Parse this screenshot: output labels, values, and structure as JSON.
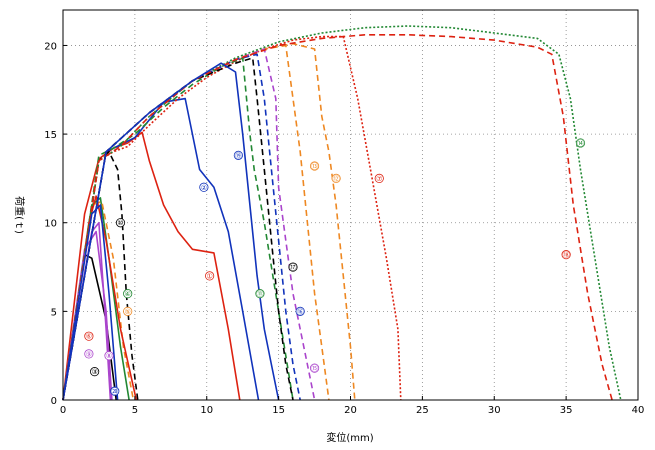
{
  "chart_data": {
    "type": "line",
    "title": "",
    "xlabel": "変位(mm)",
    "ylabel": "荷重(ｔ)",
    "xlim": [
      0,
      40
    ],
    "ylim": [
      0,
      22
    ],
    "x_ticks": [
      0,
      5,
      10,
      15,
      20,
      25,
      30,
      35,
      40
    ],
    "y_ticks": [
      0,
      5,
      10,
      15,
      20
    ],
    "grid": true,
    "grid_style": "dotted",
    "series": [
      {
        "label": "①",
        "color": "#dd2211",
        "dash": "",
        "label_at": [
          10.2,
          7.0
        ],
        "x": [
          0,
          1.5,
          2.5,
          3.5,
          4.5,
          5.5,
          6.0,
          7.0,
          8.0,
          9.0,
          10.5,
          11.5,
          12.3
        ],
        "y": [
          0,
          10.5,
          13.6,
          14.2,
          14.5,
          15.1,
          13.5,
          11.0,
          9.5,
          8.5,
          8.3,
          4.0,
          0
        ]
      },
      {
        "label": "②",
        "color": "#1133bb",
        "dash": "",
        "label_at": [
          9.8,
          12.0
        ],
        "x": [
          0,
          3.0,
          5.0,
          7.0,
          8.5,
          9.5,
          10.5,
          11.5,
          12.5,
          13.6
        ],
        "y": [
          0,
          14.0,
          14.8,
          16.8,
          17.0,
          13.0,
          12.0,
          9.5,
          5.0,
          0
        ]
      },
      {
        "label": "③",
        "color": "#000000",
        "dash": "",
        "label_at": [
          2.2,
          1.6
        ],
        "x": [
          0,
          1.5,
          2.0,
          3.0,
          3.7
        ],
        "y": [
          0,
          8.2,
          8.0,
          4.5,
          0
        ]
      },
      {
        "label": "④",
        "color": "#228833",
        "dash": "",
        "label_at": [
          4.5,
          6.0
        ],
        "x": [
          0,
          2.0,
          2.6,
          3.2,
          4.0,
          4.6
        ],
        "y": [
          0,
          11.0,
          11.4,
          8.0,
          3.0,
          0
        ]
      },
      {
        "label": "⑤",
        "color": "#ee8822",
        "dash": "6,4",
        "label_at": [
          4.5,
          5.0
        ],
        "x": [
          0,
          2.0,
          2.7,
          3.5,
          4.2,
          4.9
        ],
        "y": [
          0,
          11.0,
          11.2,
          8.0,
          3.0,
          0
        ]
      },
      {
        "label": "⑥",
        "color": "#dd2211",
        "dash": "",
        "label_at": [
          1.8,
          3.6
        ],
        "x": [
          0,
          1.8,
          2.3,
          3.0,
          4.0,
          5.1
        ],
        "y": [
          0,
          10.0,
          11.5,
          9.0,
          4.0,
          0
        ]
      },
      {
        "label": "⑦",
        "color": "#dd2211",
        "dash": "2,2",
        "label_at": [
          22.0,
          12.5
        ],
        "x": [
          0,
          2.5,
          3.5,
          4.5,
          6.0,
          8.0,
          10.0,
          12.0,
          14.0,
          16.0,
          18.0,
          19.5,
          20.5,
          21.5,
          22.5,
          23.3,
          23.5
        ],
        "y": [
          0,
          13.5,
          14.0,
          14.3,
          15.5,
          17.0,
          18.2,
          19.1,
          19.8,
          20.3,
          20.5,
          20.5,
          17.0,
          12.5,
          8.0,
          4.0,
          0
        ]
      },
      {
        "label": "⑧",
        "color": "#aa44cc",
        "dash": "",
        "label_at": [
          3.2,
          2.5
        ],
        "x": [
          0,
          2.0,
          2.5,
          3.0,
          3.3
        ],
        "y": [
          0,
          9.5,
          10.0,
          4.0,
          0
        ]
      },
      {
        "label": "⑨",
        "color": "#aa44cc",
        "dash": "",
        "label_at": [
          1.8,
          2.6
        ],
        "x": [
          0,
          1.5,
          2.3,
          3.0,
          3.4
        ],
        "y": [
          0,
          8.5,
          9.5,
          5.0,
          0
        ]
      },
      {
        "label": "⑩",
        "color": "#000000",
        "dash": "6,4",
        "label_at": [
          4.0,
          10.0
        ],
        "x": [
          0,
          2.5,
          3.2,
          3.8,
          4.1,
          4.4,
          4.8,
          5.2
        ],
        "y": [
          0,
          13.5,
          14.0,
          13.0,
          10.5,
          6.0,
          2.5,
          0
        ]
      },
      {
        "label": "⑪",
        "color": "#228833",
        "dash": "6,4",
        "label_at": [
          13.7,
          6.0
        ],
        "x": [
          0,
          2.5,
          3.5,
          5.0,
          7.0,
          9.0,
          11.0,
          12.5,
          13.0,
          13.3,
          14.0,
          15.0,
          16.0
        ],
        "y": [
          0,
          13.8,
          14.2,
          15.0,
          16.5,
          17.8,
          18.8,
          19.3,
          15.0,
          13.0,
          10.0,
          5.0,
          0
        ]
      },
      {
        "label": "⑫",
        "color": "#ee8822",
        "dash": "6,4",
        "label_at": [
          19.0,
          12.5
        ],
        "x": [
          0,
          3.0,
          6.0,
          9.0,
          12.0,
          14.0,
          16.0,
          17.5,
          18.0,
          18.5,
          19.0,
          19.5,
          20.0,
          20.3
        ],
        "y": [
          0,
          14.0,
          16.2,
          18.0,
          19.2,
          19.8,
          20.1,
          19.8,
          16.0,
          14.0,
          11.0,
          7.0,
          3.0,
          0
        ]
      },
      {
        "label": "⑬",
        "color": "#ee8822",
        "dash": "6,4",
        "label_at": [
          17.5,
          13.2
        ],
        "x": [
          0,
          3.0,
          6.0,
          9.0,
          12.0,
          14.0,
          15.5,
          16.0,
          16.5,
          17.0,
          17.5,
          18.0,
          18.5
        ],
        "y": [
          0,
          14.0,
          16.2,
          18.0,
          19.2,
          19.8,
          20.0,
          17.0,
          14.0,
          10.0,
          6.0,
          3.0,
          0
        ]
      },
      {
        "label": "⑭",
        "color": "#228833",
        "dash": "2,2",
        "label_at": [
          36.0,
          14.5
        ],
        "x": [
          0,
          2.5,
          4.0,
          6.0,
          9.0,
          12.0,
          15.0,
          18.0,
          21.0,
          24.0,
          27.0,
          30.0,
          33.0,
          34.5,
          35.3,
          36.0,
          37.0,
          38.0,
          38.8
        ],
        "y": [
          0,
          13.5,
          14.3,
          16.0,
          18.0,
          19.3,
          20.2,
          20.7,
          21.0,
          21.1,
          21.0,
          20.7,
          20.4,
          19.5,
          17.0,
          13.0,
          8.0,
          3.0,
          0
        ]
      },
      {
        "label": "⑮",
        "color": "#aa44cc",
        "dash": "6,4",
        "label_at": [
          17.5,
          1.8
        ],
        "x": [
          0,
          3.0,
          6.0,
          9.0,
          12.0,
          14.0,
          14.8,
          15.0,
          15.5,
          16.0,
          16.5,
          17.0,
          17.5
        ],
        "y": [
          0,
          14.0,
          16.2,
          18.0,
          19.2,
          19.8,
          17.0,
          12.0,
          9.0,
          6.0,
          4.0,
          2.0,
          0
        ]
      },
      {
        "label": "⑯",
        "color": "#1133bb",
        "dash": "6,4",
        "label_at": [
          16.5,
          5.0
        ],
        "x": [
          0,
          3.0,
          6.0,
          9.0,
          12.0,
          13.5,
          14.0,
          14.5,
          15.0,
          15.5,
          16.0,
          16.5
        ],
        "y": [
          0,
          14.0,
          16.2,
          18.0,
          19.2,
          19.5,
          17.0,
          13.0,
          9.0,
          5.0,
          2.0,
          0
        ]
      },
      {
        "label": "⑰",
        "color": "#000000",
        "dash": "6,4",
        "label_at": [
          16.0,
          7.5
        ],
        "x": [
          0,
          3.0,
          6.0,
          9.0,
          12.0,
          13.2,
          13.5,
          14.0,
          14.5,
          15.0,
          15.5,
          16.0
        ],
        "y": [
          0,
          14.0,
          16.2,
          18.0,
          19.0,
          19.3,
          17.0,
          13.0,
          9.0,
          5.0,
          2.0,
          0
        ]
      },
      {
        "label": "⑱",
        "color": "#dd2211",
        "dash": "6,4",
        "label_at": [
          35.0,
          8.2
        ],
        "x": [
          0,
          2.5,
          4.0,
          6.0,
          9.0,
          12.0,
          15.0,
          18.0,
          21.0,
          24.0,
          27.0,
          30.0,
          33.0,
          34.0,
          34.8,
          35.5,
          36.5,
          37.5,
          38.2
        ],
        "y": [
          0,
          13.5,
          14.3,
          16.0,
          18.0,
          19.2,
          20.0,
          20.4,
          20.6,
          20.6,
          20.5,
          20.3,
          19.9,
          19.5,
          16.0,
          11.0,
          6.0,
          2.0,
          0
        ]
      },
      {
        "label": "⑲",
        "color": "#1133bb",
        "dash": "",
        "label_at": [
          12.2,
          13.8
        ],
        "x": [
          0,
          3.0,
          6.0,
          9.0,
          11.0,
          12.0,
          12.5,
          13.0,
          13.5,
          14.0,
          14.5,
          15.0
        ],
        "y": [
          0,
          14.0,
          16.2,
          18.0,
          19.0,
          18.5,
          15.0,
          11.0,
          7.0,
          4.0,
          2.0,
          0
        ]
      },
      {
        "label": "⑳",
        "color": "#1133bb",
        "dash": "",
        "label_at": [
          3.6,
          0.5
        ],
        "x": [
          0,
          2.0,
          2.6,
          3.2,
          3.8
        ],
        "y": [
          0,
          10.5,
          11.0,
          6.0,
          0
        ]
      }
    ]
  }
}
